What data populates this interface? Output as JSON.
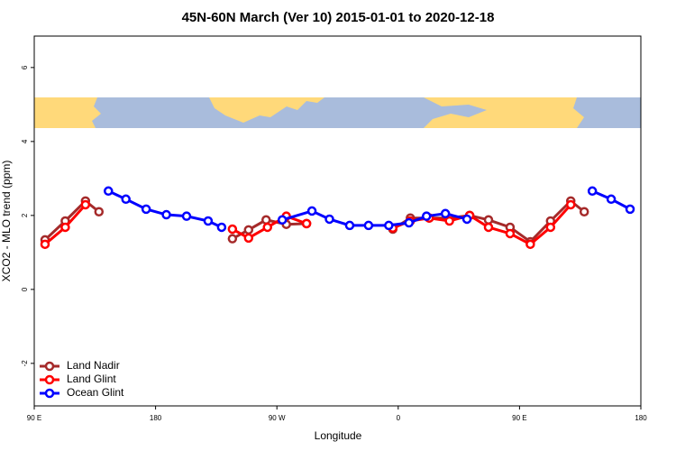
{
  "chart_data": {
    "type": "line",
    "title": "45N-60N March (Ver 10)   2015-01-01 to 2020-12-18",
    "xlabel": "Longitude",
    "ylabel": "XCO2 - MLO trend (ppm)",
    "xlim": [
      90,
      540
    ],
    "ylim": [
      -3.15,
      6.85
    ],
    "xticks": [
      {
        "value": 90,
        "label": "90 E"
      },
      180,
      {
        "value": 270,
        "label": "90 W"
      },
      {
        "value": 360,
        "label": "0"
      },
      {
        "value": 450,
        "label": "90 E"
      },
      {
        "value": 540,
        "label": "180"
      }
    ],
    "yticks": [
      -2,
      0,
      2,
      4,
      6
    ],
    "legend": "bottom-left",
    "series": [
      {
        "name": "Land Nadir",
        "color": "#a52a2a",
        "x": [
          98,
          113,
          128,
          138,
          null,
          237,
          249,
          262,
          277,
          292,
          null,
          356,
          369,
          383,
          398,
          413,
          427,
          443,
          458,
          473,
          488,
          498
        ],
        "values": [
          1.34,
          1.85,
          2.39,
          2.1,
          null,
          1.37,
          1.61,
          1.88,
          1.76,
          1.78,
          null,
          1.63,
          1.93,
          1.93,
          1.93,
          2.0,
          1.88,
          1.68,
          1.29,
          1.85,
          2.39,
          2.1
        ]
      },
      {
        "name": "Land Glint",
        "color": "#ff0000",
        "x": [
          98,
          113,
          128,
          null,
          237,
          249,
          263,
          277,
          292,
          null,
          356,
          369,
          383,
          398,
          413,
          427,
          443,
          458,
          473,
          488
        ],
        "values": [
          1.22,
          1.68,
          2.29,
          null,
          1.63,
          1.39,
          1.68,
          1.98,
          1.78,
          null,
          1.66,
          1.85,
          1.93,
          1.85,
          2.0,
          1.68,
          1.51,
          1.22,
          1.68,
          2.29
        ]
      },
      {
        "name": "Ocean Glint",
        "color": "#0000ff",
        "x": [
          145,
          158,
          173,
          188,
          203,
          219,
          229,
          null,
          274,
          296,
          309,
          324,
          338,
          353,
          368,
          381,
          395,
          411,
          null,
          504,
          518,
          532
        ],
        "values": [
          2.66,
          2.44,
          2.17,
          2.02,
          1.98,
          1.85,
          1.68,
          null,
          1.88,
          2.12,
          1.9,
          1.73,
          1.73,
          1.73,
          1.8,
          1.98,
          2.05,
          1.9,
          null,
          2.66,
          2.44,
          2.17
        ]
      }
    ]
  }
}
